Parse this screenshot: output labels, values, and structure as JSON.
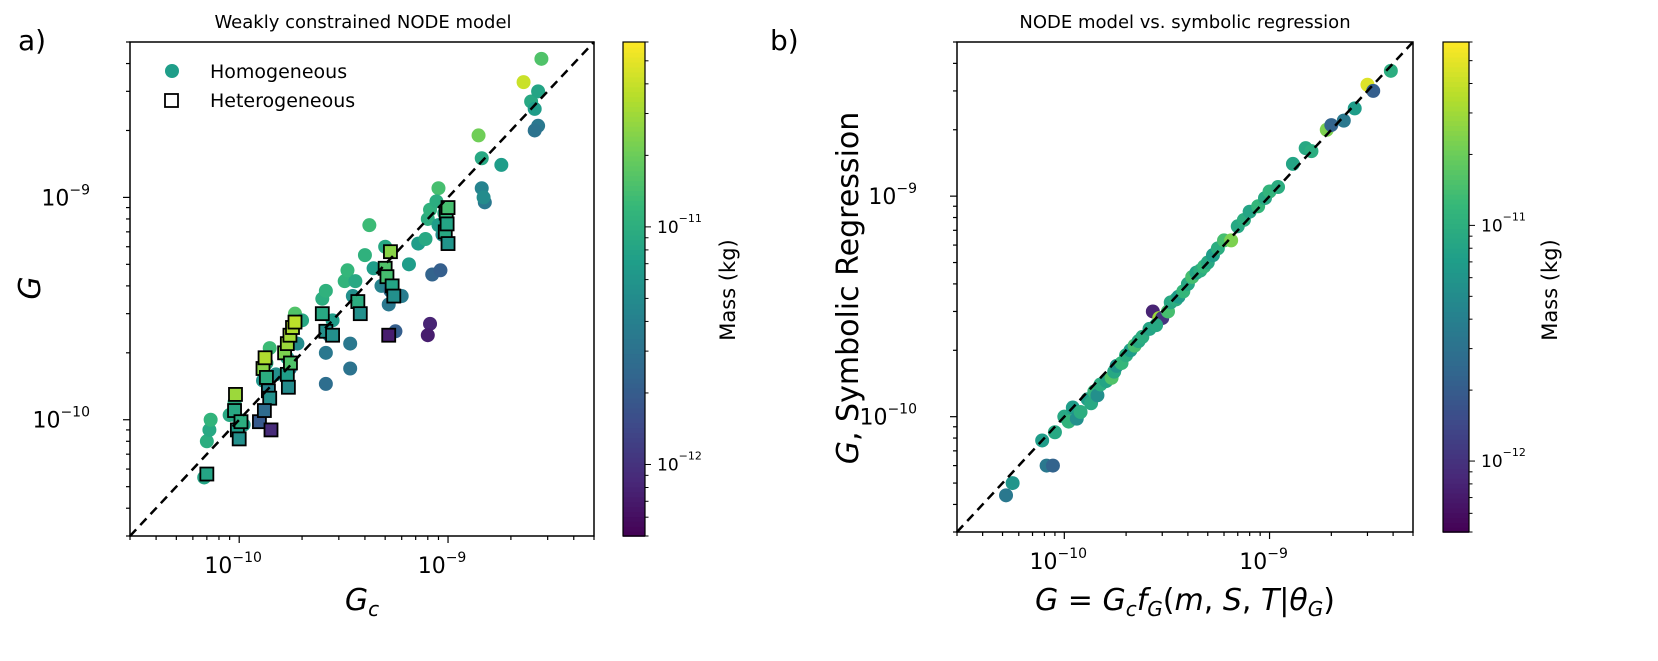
{
  "colors": {
    "viridis": [
      "#440154",
      "#482878",
      "#3e4989",
      "#31688e",
      "#26828e",
      "#1f9e89",
      "#35b779",
      "#6ece58",
      "#b5de2b",
      "#fde725"
    ],
    "diagonal": "#000000",
    "square_edge": "#000000"
  },
  "chart_data": [
    {
      "type": "scatter",
      "panel": "a)",
      "title": "Weakly constrained NODE model",
      "xlabel": "G_c",
      "ylabel": "G",
      "xscale": "log",
      "yscale": "log",
      "xlim": [
        3e-11,
        5e-09
      ],
      "ylim": [
        3e-11,
        5e-09
      ],
      "xticks": [
        {
          "base": "10",
          "exp": "−10",
          "value": 1e-10
        },
        {
          "base": "10",
          "exp": "−9",
          "value": 1e-09
        }
      ],
      "yticks": [
        {
          "base": "10",
          "exp": "−10",
          "value": 1e-10
        },
        {
          "base": "10",
          "exp": "−9",
          "value": 1e-09
        }
      ],
      "reference_line": "y = x (dashed)",
      "legend": {
        "position": "top-left",
        "entries": [
          "Homogeneous",
          "Heterogeneous"
        ]
      },
      "colorbar": {
        "label": "Mass (kg)",
        "scale": "log",
        "range": [
          5e-13,
          6e-11
        ],
        "ticks": [
          {
            "base": "10",
            "exp": "−11",
            "value": 1e-11
          },
          {
            "base": "10",
            "exp": "−12",
            "value": 1e-12
          }
        ]
      },
      "series": [
        {
          "name": "Homogeneous",
          "marker": "circle",
          "points": [
            [
              6.8e-11,
              5.5e-11,
              0.58
            ],
            [
              7e-11,
              8e-11,
              0.62
            ],
            [
              7.2e-11,
              9e-11,
              0.6
            ],
            [
              7.3e-11,
              1e-10,
              0.65
            ],
            [
              9e-11,
              1.05e-10,
              0.6
            ],
            [
              9.5e-11,
              1.2e-10,
              0.62
            ],
            [
              1e-10,
              1e-10,
              0.58
            ],
            [
              1.05e-10,
              9.5e-11,
              0.55
            ],
            [
              1.3e-10,
              1.5e-10,
              0.52
            ],
            [
              1.35e-10,
              1.8e-10,
              0.6
            ],
            [
              1.4e-10,
              2.1e-10,
              0.68
            ],
            [
              1.4e-10,
              1.3e-10,
              0.4
            ],
            [
              1.5e-10,
              1.6e-10,
              0.5
            ],
            [
              1.7e-10,
              1.9e-10,
              0.55
            ],
            [
              1.8e-10,
              2.6e-10,
              0.66
            ],
            [
              1.85e-10,
              3e-10,
              0.72
            ],
            [
              1.9e-10,
              2.2e-10,
              0.48
            ],
            [
              2e-10,
              2.8e-10,
              0.6
            ],
            [
              1.75e-10,
              1.7e-10,
              0.42
            ],
            [
              2.5e-10,
              3.5e-10,
              0.62
            ],
            [
              2.6e-10,
              3.8e-10,
              0.64
            ],
            [
              2.6e-10,
              2e-10,
              0.4
            ],
            [
              2.7e-10,
              2.4e-10,
              0.42
            ],
            [
              2.6e-10,
              1.45e-10,
              0.36
            ],
            [
              2.8e-10,
              2.8e-10,
              0.55
            ],
            [
              3.2e-10,
              4.2e-10,
              0.65
            ],
            [
              3.3e-10,
              4.7e-10,
              0.66
            ],
            [
              3.5e-10,
              3.6e-10,
              0.5
            ],
            [
              3.4e-10,
              1.7e-10,
              0.38
            ],
            [
              3.4e-10,
              2.2e-10,
              0.4
            ],
            [
              3.6e-10,
              4.2e-10,
              0.6
            ],
            [
              4e-10,
              5.5e-10,
              0.64
            ],
            [
              4.2e-10,
              7.5e-10,
              0.68
            ],
            [
              4.4e-10,
              4.8e-10,
              0.55
            ],
            [
              4.8e-10,
              4e-10,
              0.45
            ],
            [
              5e-10,
              6e-10,
              0.6
            ],
            [
              5.2e-10,
              3.3e-10,
              0.4
            ],
            [
              5.3e-10,
              3.8e-10,
              0.36
            ],
            [
              5.6e-10,
              2.5e-10,
              0.3
            ],
            [
              6e-10,
              3.6e-10,
              0.42
            ],
            [
              6.5e-10,
              5e-10,
              0.55
            ],
            [
              7.2e-10,
              6.2e-10,
              0.55
            ],
            [
              7.8e-10,
              6.5e-10,
              0.6
            ],
            [
              8e-10,
              8e-10,
              0.62
            ],
            [
              8.2e-10,
              8.8e-10,
              0.64
            ],
            [
              8.4e-10,
              4.5e-10,
              0.32
            ],
            [
              8.2e-10,
              2.7e-10,
              0.1
            ],
            [
              8e-10,
              2.4e-10,
              0.08
            ],
            [
              9e-10,
              1.1e-09,
              0.7
            ],
            [
              9.2e-10,
              4.7e-10,
              0.3
            ],
            [
              9.4e-10,
              6.8e-10,
              0.5
            ],
            [
              9e-10,
              7.5e-10,
              0.55
            ],
            [
              8.8e-10,
              9.6e-10,
              0.62
            ],
            [
              9.6e-10,
              8.5e-10,
              0.6
            ],
            [
              1.4e-09,
              1.9e-09,
              0.78
            ],
            [
              1.45e-09,
              1.5e-09,
              0.6
            ],
            [
              1.45e-09,
              1.1e-09,
              0.45
            ],
            [
              1.5e-09,
              9.5e-10,
              0.4
            ],
            [
              1.8e-09,
              1.4e-09,
              0.55
            ],
            [
              1.48e-09,
              1e-09,
              0.48
            ],
            [
              2.3e-09,
              3.3e-09,
              0.92
            ],
            [
              2.5e-09,
              2.7e-09,
              0.6
            ],
            [
              2.6e-09,
              2.5e-09,
              0.55
            ],
            [
              2.7e-09,
              3e-09,
              0.58
            ],
            [
              2.8e-09,
              4.2e-09,
              0.72
            ],
            [
              2.7e-09,
              2.1e-09,
              0.4
            ],
            [
              2.6e-09,
              2e-09,
              0.38
            ]
          ]
        },
        {
          "name": "Heterogeneous",
          "marker": "square",
          "points": [
            [
              7e-11,
              5.7e-11,
              0.58
            ],
            [
              9.5e-11,
              1.1e-10,
              0.6
            ],
            [
              9.6e-11,
              1.3e-10,
              0.85
            ],
            [
              9.8e-11,
              9e-11,
              0.55
            ],
            [
              1e-10,
              8.2e-11,
              0.5
            ],
            [
              1.02e-10,
              9.8e-11,
              0.62
            ],
            [
              1.25e-10,
              9.8e-11,
              0.28
            ],
            [
              1.3e-10,
              1.7e-10,
              0.82
            ],
            [
              1.33e-10,
              1.9e-10,
              0.88
            ],
            [
              1.35e-10,
              1.55e-10,
              0.62
            ],
            [
              1.38e-10,
              1.35e-10,
              0.45
            ],
            [
              1.4e-10,
              1.25e-10,
              0.5
            ],
            [
              1.42e-10,
              9e-11,
              0.12
            ],
            [
              1.32e-10,
              1.1e-10,
              0.35
            ],
            [
              1.65e-10,
              2e-10,
              0.8
            ],
            [
              1.7e-10,
              2.2e-10,
              0.85
            ],
            [
              1.75e-10,
              2.4e-10,
              0.86
            ],
            [
              1.8e-10,
              2.6e-10,
              0.88
            ],
            [
              1.85e-10,
              2.75e-10,
              0.9
            ],
            [
              1.7e-10,
              1.6e-10,
              0.55
            ],
            [
              1.72e-10,
              1.4e-10,
              0.48
            ],
            [
              1.76e-10,
              1.8e-10,
              0.72
            ],
            [
              2.5e-10,
              3e-10,
              0.6
            ],
            [
              2.6e-10,
              2.5e-10,
              0.5
            ],
            [
              2.8e-10,
              2.4e-10,
              0.5
            ],
            [
              3.7e-10,
              3.4e-10,
              0.62
            ],
            [
              3.8e-10,
              3e-10,
              0.5
            ],
            [
              5e-10,
              4.8e-10,
              0.72
            ],
            [
              5.1e-10,
              4.4e-10,
              0.7
            ],
            [
              5.3e-10,
              5.7e-10,
              0.82
            ],
            [
              5.4e-10,
              4e-10,
              0.58
            ],
            [
              5.5e-10,
              3.6e-10,
              0.5
            ],
            [
              5.2e-10,
              2.4e-10,
              0.08
            ],
            [
              9.7e-10,
              7e-10,
              0.6
            ],
            [
              9.8e-10,
              8.5e-10,
              0.66
            ],
            [
              1e-09,
              6.2e-10,
              0.52
            ],
            [
              1e-09,
              9e-10,
              0.7
            ],
            [
              9.9e-10,
              7.6e-10,
              0.58
            ]
          ]
        }
      ]
    },
    {
      "type": "scatter",
      "panel": "b)",
      "title": "NODE model vs. symbolic regression",
      "xlabel": "G = G_c f_G(m, S, T | θ_G)",
      "ylabel": "G, Symbolic Regression",
      "xscale": "log",
      "yscale": "log",
      "xlim": [
        3e-11,
        5e-09
      ],
      "ylim": [
        3e-11,
        5e-09
      ],
      "xticks": [
        {
          "base": "10",
          "exp": "−10",
          "value": 1e-10
        },
        {
          "base": "10",
          "exp": "−9",
          "value": 1e-09
        }
      ],
      "yticks": [
        {
          "base": "10",
          "exp": "−10",
          "value": 1e-10
        },
        {
          "base": "10",
          "exp": "−9",
          "value": 1e-09
        }
      ],
      "reference_line": "y = x (dashed)",
      "colorbar": {
        "label": "Mass (kg)",
        "scale": "log",
        "range": [
          5e-13,
          6e-11
        ],
        "ticks": [
          {
            "base": "10",
            "exp": "−11",
            "value": 1e-11
          },
          {
            "base": "10",
            "exp": "−12",
            "value": 1e-12
          }
        ]
      },
      "series": [
        {
          "name": "Symbolic regression",
          "marker": "circle",
          "points": [
            [
              5.2e-11,
              4.4e-11,
              0.4
            ],
            [
              5.6e-11,
              5e-11,
              0.52
            ],
            [
              7.8e-11,
              7.8e-11,
              0.55
            ],
            [
              8.2e-11,
              6e-11,
              0.4
            ],
            [
              8.8e-11,
              6e-11,
              0.32
            ],
            [
              9e-11,
              8.5e-11,
              0.6
            ],
            [
              1e-10,
              1e-10,
              0.6
            ],
            [
              1.05e-10,
              9.5e-11,
              0.65
            ],
            [
              1.1e-10,
              1.1e-10,
              0.55
            ],
            [
              1.15e-10,
              9.8e-11,
              0.5
            ],
            [
              1.2e-10,
              1.05e-10,
              0.62
            ],
            [
              1.3e-10,
              1.2e-10,
              0.55
            ],
            [
              1.35e-10,
              1.15e-10,
              0.6
            ],
            [
              1.4e-10,
              1.3e-10,
              0.66
            ],
            [
              1.45e-10,
              1.25e-10,
              0.5
            ],
            [
              1.5e-10,
              1.4e-10,
              0.62
            ],
            [
              1.6e-10,
              1.45e-10,
              0.58
            ],
            [
              1.7e-10,
              1.5e-10,
              0.72
            ],
            [
              1.75e-10,
              1.6e-10,
              0.6
            ],
            [
              1.8e-10,
              1.7e-10,
              0.52
            ],
            [
              1.9e-10,
              1.75e-10,
              0.66
            ],
            [
              2e-10,
              1.9e-10,
              0.62
            ],
            [
              2.1e-10,
              2e-10,
              0.55
            ],
            [
              2.2e-10,
              2.1e-10,
              0.7
            ],
            [
              2.3e-10,
              2.2e-10,
              0.6
            ],
            [
              2.4e-10,
              2.3e-10,
              0.62
            ],
            [
              2.6e-10,
              2.5e-10,
              0.58
            ],
            [
              2.7e-10,
              3e-10,
              0.1
            ],
            [
              2.9e-10,
              2.8e-10,
              0.85
            ],
            [
              3e-10,
              2.8e-10,
              0.15
            ],
            [
              2.8e-10,
              2.6e-10,
              0.6
            ],
            [
              3.2e-10,
              3e-10,
              0.7
            ],
            [
              3.3e-10,
              3.3e-10,
              0.6
            ],
            [
              3.5e-10,
              3.4e-10,
              0.62
            ],
            [
              3.6e-10,
              3.5e-10,
              0.55
            ],
            [
              3.8e-10,
              3.7e-10,
              0.66
            ],
            [
              4e-10,
              4e-10,
              0.6
            ],
            [
              4.2e-10,
              4.3e-10,
              0.7
            ],
            [
              4.4e-10,
              4.5e-10,
              0.58
            ],
            [
              4.6e-10,
              4.6e-10,
              0.62
            ],
            [
              4.8e-10,
              4.8e-10,
              0.66
            ],
            [
              5e-10,
              5e-10,
              0.6
            ],
            [
              5.3e-10,
              5.4e-10,
              0.55
            ],
            [
              5.6e-10,
              5.8e-10,
              0.62
            ],
            [
              6e-10,
              6.3e-10,
              0.7
            ],
            [
              6.5e-10,
              6.3e-10,
              0.8
            ],
            [
              7e-10,
              7.3e-10,
              0.6
            ],
            [
              7.5e-10,
              7.8e-10,
              0.62
            ],
            [
              8e-10,
              8.5e-10,
              0.58
            ],
            [
              8.8e-10,
              9e-10,
              0.66
            ],
            [
              9.5e-10,
              9.8e-10,
              0.6
            ],
            [
              1e-09,
              1.05e-09,
              0.65
            ],
            [
              1.1e-09,
              1.1e-09,
              0.62
            ],
            [
              1.3e-09,
              1.4e-09,
              0.58
            ],
            [
              1.5e-09,
              1.65e-09,
              0.6
            ],
            [
              1.6e-09,
              1.6e-09,
              0.62
            ],
            [
              1.9e-09,
              2e-09,
              0.8
            ],
            [
              2e-09,
              2.1e-09,
              0.32
            ],
            [
              2.3e-09,
              2.2e-09,
              0.4
            ],
            [
              2.6e-09,
              2.5e-09,
              0.55
            ],
            [
              3e-09,
              3.2e-09,
              0.95
            ],
            [
              3.2e-09,
              3e-09,
              0.3
            ],
            [
              3.9e-09,
              3.7e-09,
              0.62
            ]
          ]
        }
      ]
    }
  ]
}
